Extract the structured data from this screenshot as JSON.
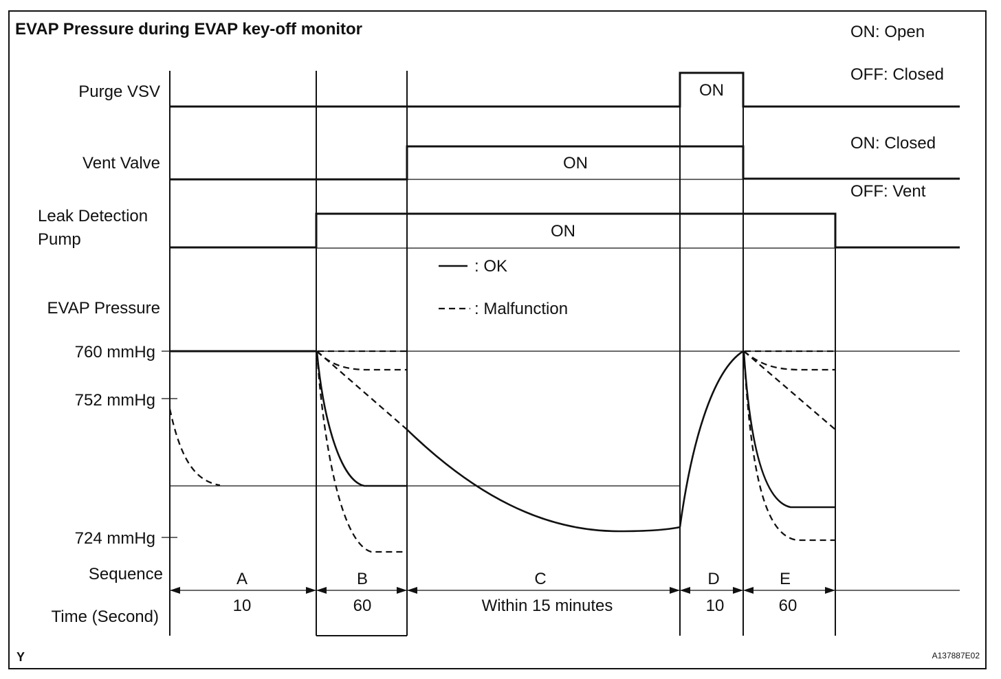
{
  "title": "EVAP Pressure during EVAP key-off monitor",
  "legend_valves": {
    "purge_on": "ON: Open",
    "purge_off": "OFF: Closed",
    "vent_on": "ON: Closed",
    "vent_off": "OFF: Vent"
  },
  "rows": {
    "purge_vsv": "Purge VSV",
    "vent_valve": "Vent Valve",
    "leak_pump_line1": "Leak Detection",
    "leak_pump_line2": "Pump",
    "evap_pressure": "EVAP Pressure",
    "sequence": "Sequence",
    "time": "Time (Second)"
  },
  "state_labels": {
    "purge_on": "ON",
    "vent_on": "ON",
    "pump_on": "ON"
  },
  "pressure_levels": [
    "760 mmHg",
    "752 mmHg",
    "724 mmHg"
  ],
  "line_legend": {
    "ok": ": OK",
    "malfunction": ": Malfunction"
  },
  "sequence": [
    {
      "id": "A",
      "time": "10"
    },
    {
      "id": "B",
      "time": "60"
    },
    {
      "id": "C",
      "time": "Within 15 minutes"
    },
    {
      "id": "D",
      "time": "10"
    },
    {
      "id": "E",
      "time": "60"
    }
  ],
  "corner_mark": "Y",
  "figure_code": "A137887E02"
}
